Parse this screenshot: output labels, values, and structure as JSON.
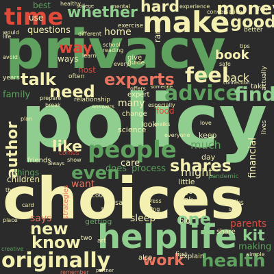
{
  "palette": {
    "background": "#2b2b2b",
    "green": "#5fa15f",
    "light_green": "#8fce8f",
    "cream": "#f3f0b2",
    "red": "#e04a3a",
    "salmon": "#e8735e",
    "gray": "#b9b9b9"
  },
  "words": [
    {
      "text": "privacy",
      "color": "#5fa15f"
    },
    {
      "text": "policy",
      "color": "#8fce8f"
    },
    {
      "text": "choices",
      "color": "#f3f0b2"
    },
    {
      "text": "make",
      "color": "#f3f0b2"
    },
    {
      "text": "helplife",
      "color": "#8fce8f"
    },
    {
      "text": "time",
      "color": "#e04a3a"
    },
    {
      "text": "people",
      "color": "#5fa15f"
    },
    {
      "text": "experts",
      "color": "#e8735e"
    },
    {
      "text": "feel",
      "color": "#f3f0b2"
    },
    {
      "text": "originally",
      "color": "#f3f0b2"
    },
    {
      "text": "advice",
      "color": "#5fa15f"
    },
    {
      "text": "money",
      "color": "#f3f0b2"
    },
    {
      "text": "whether",
      "color": "#8fce8f"
    },
    {
      "text": "hard",
      "color": "#f3f0b2"
    },
    {
      "text": "good",
      "color": "#f3f0b2"
    },
    {
      "text": "need",
      "color": "#f3f0b2"
    },
    {
      "text": "talk",
      "color": "#f3f0b2"
    },
    {
      "text": "way",
      "color": "#e04a3a"
    },
    {
      "text": "find",
      "color": "#8fce8f"
    },
    {
      "text": "even",
      "color": "#5fa15f"
    },
    {
      "text": "author",
      "color": "#f3f0b2"
    },
    {
      "text": "shares",
      "color": "#f3f0b2"
    },
    {
      "text": "health",
      "color": "#5fa15f"
    },
    {
      "text": "work",
      "color": "#e8735e"
    },
    {
      "text": "new",
      "color": "#f3f0b2"
    },
    {
      "text": "know",
      "color": "#f3f0b2"
    },
    {
      "text": "one",
      "color": "#8fce8f"
    },
    {
      "text": "like",
      "color": "#f3f0b2"
    },
    {
      "text": "book",
      "color": "#f3f0b2"
    },
    {
      "text": "kit",
      "color": "#8fce8f"
    },
    {
      "text": "much",
      "color": "#5fa15f"
    },
    {
      "text": "financial",
      "color": "#f3f0b2"
    },
    {
      "text": "might",
      "color": "#f3f0b2"
    },
    {
      "text": "back",
      "color": "#f3f0b2"
    },
    {
      "text": "says",
      "color": "#e8735e"
    },
    {
      "text": "parents",
      "color": "#e04a3a"
    },
    {
      "text": "making",
      "color": "#5fa15f"
    },
    {
      "text": "want",
      "color": "#e8735e"
    },
    {
      "text": "many",
      "color": "#f3f0b2"
    },
    {
      "text": "questions",
      "color": "#f3f0b2"
    },
    {
      "text": "home",
      "color": "#f3f0b2"
    },
    {
      "text": "host",
      "color": "#e04a3a"
    },
    {
      "text": "ways",
      "color": "#f3f0b2"
    },
    {
      "text": "family",
      "color": "#5fa15f"
    },
    {
      "text": "does",
      "color": "#5fa15f"
    },
    {
      "text": "sleep",
      "color": "#f3f0b2"
    },
    {
      "text": "process",
      "color": "#5fa15f"
    },
    {
      "text": "science",
      "color": "#f3f0b2"
    },
    {
      "text": "food",
      "color": "#e04a3a"
    },
    {
      "text": "right",
      "color": "#f3f0b2"
    },
    {
      "text": "think",
      "color": "#f3f0b2"
    },
    {
      "text": "care",
      "color": "#f3f0b2"
    },
    {
      "text": "things",
      "color": "#5fa15f"
    },
    {
      "text": "children",
      "color": "#f3f0b2"
    },
    {
      "text": "friends",
      "color": "#f3f0b2"
    },
    {
      "text": "best",
      "color": "#5fa15f"
    },
    {
      "text": "use",
      "color": "#f3f0b2"
    },
    {
      "text": "getting",
      "color": "#5fa15f"
    },
    {
      "text": "talks",
      "color": "#f3f0b2"
    },
    {
      "text": "explain",
      "color": "#f3f0b2"
    },
    {
      "text": "also",
      "color": "#f3f0b2"
    },
    {
      "text": "first",
      "color": "#f3f0b2"
    },
    {
      "text": "say",
      "color": "#f3f0b2"
    },
    {
      "text": "look",
      "color": "#f3f0b2"
    },
    {
      "text": "little",
      "color": "#f3f0b2"
    },
    {
      "text": "day",
      "color": "#f3f0b2"
    },
    {
      "text": "keep",
      "color": "#f3f0b2"
    },
    {
      "text": "got",
      "color": "#f3f0b2"
    },
    {
      "text": "years",
      "color": "#f3f0b2"
    },
    {
      "text": "life",
      "color": "#f3f0b2"
    },
    {
      "text": "exercise",
      "color": "#f3f0b2"
    },
    {
      "text": "relationship",
      "color": "#f3f0b2"
    },
    {
      "text": "change",
      "color": "#f3f0b2"
    },
    {
      "text": "expert",
      "color": "#f3f0b2"
    },
    {
      "text": "pandemic",
      "color": "#5fa15f"
    },
    {
      "text": "share",
      "color": "#f3f0b2"
    },
    {
      "text": "often",
      "color": "#f3f0b2"
    },
    {
      "text": "give",
      "color": "#f3f0b2"
    },
    {
      "text": "guide",
      "color": "#f3f0b2"
    },
    {
      "text": "ran",
      "color": "#f3f0b2"
    },
    {
      "text": "better",
      "color": "#f3f0b2"
    },
    {
      "text": "different",
      "color": "#f3f0b2"
    },
    {
      "text": "strategies",
      "color": "#e8735e"
    },
    {
      "text": "remember",
      "color": "#e8735e"
    },
    {
      "text": "creative",
      "color": "#5fa15f"
    },
    {
      "text": "simple",
      "color": "#f3f0b2"
    },
    {
      "text": "take",
      "color": "#f3f0b2"
    },
    {
      "text": "actually",
      "color": "#f3f0b2"
    },
    {
      "text": "lives",
      "color": "#f3f0b2"
    },
    {
      "text": "stress",
      "color": "#f3f0b2"
    },
    {
      "text": "could",
      "color": "#f3f0b2"
    },
    {
      "text": "two",
      "color": "#f3f0b2"
    },
    {
      "text": "art",
      "color": "#f3f0b2"
    },
    {
      "text": "big",
      "color": "#f3f0b2"
    },
    {
      "text": "social",
      "color": "#f3f0b2"
    },
    {
      "text": "mental",
      "color": "#f3f0b2"
    },
    {
      "text": "school",
      "color": "#f3f0b2"
    },
    {
      "text": "reading",
      "color": "#f3f0b2"
    },
    {
      "text": "comes",
      "color": "#e04a3a"
    },
    {
      "text": "therapist",
      "color": "#f3f0b2"
    },
    {
      "text": "avoid",
      "color": "#f3f0b2"
    },
    {
      "text": "every",
      "color": "#f3f0b2"
    },
    {
      "text": "conversations",
      "color": "#f3f0b2"
    },
    {
      "text": "safe",
      "color": "#f3f0b2"
    },
    {
      "text": "fun",
      "color": "#f3f0b2"
    },
    {
      "text": "experience",
      "color": "#f3f0b2"
    },
    {
      "text": "healthy",
      "color": "#f3f0b2"
    },
    {
      "text": "especially",
      "color": "#f3f0b2"
    },
    {
      "text": "everyone",
      "color": "#f3f0b2"
    },
    {
      "text": "learn",
      "color": "#f3f0b2"
    },
    {
      "text": "offers",
      "color": "#f3f0b2"
    },
    {
      "text": "prepare",
      "color": "#f3f0b2"
    },
    {
      "text": "answers",
      "color": "#f3f0b2"
    },
    {
      "text": "plan",
      "color": "#f3f0b2"
    },
    {
      "text": "body",
      "color": "#f3f0b2"
    },
    {
      "text": "talking",
      "color": "#f3f0b2"
    },
    {
      "text": "someone",
      "color": "#f3f0b2"
    },
    {
      "text": "place",
      "color": "#f3f0b2"
    },
    {
      "text": "card",
      "color": "#f3f0b2"
    },
    {
      "text": "show",
      "color": "#f3f0b2"
    },
    {
      "text": "always",
      "color": "#f3f0b2"
    },
    {
      "text": "tips",
      "color": "#f3f0b2"
    },
    {
      "text": "break",
      "color": "#f3f0b2"
    },
    {
      "text": "connection",
      "color": "#f3f0b2"
    },
    {
      "text": "college",
      "color": "#f3f0b2"
    },
    {
      "text": "tell",
      "color": "#f3f0b2"
    },
    {
      "text": "would",
      "color": "#f3f0b2"
    },
    {
      "text": "love",
      "color": "#f3f0b2"
    },
    {
      "text": "walks",
      "color": "#f3f0b2"
    },
    {
      "text": "sure",
      "color": "#f3f0b2"
    },
    {
      "text": "partner",
      "color": "#f3f0b2"
    }
  ]
}
